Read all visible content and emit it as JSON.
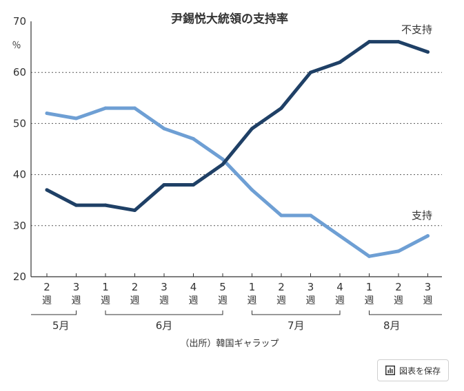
{
  "chart_data": {
    "type": "line",
    "title": "尹錫悦大統領の支持率",
    "ylabel": "％",
    "ylim": [
      20,
      70
    ],
    "yticks": [
      "20",
      "30",
      "40",
      "50",
      "60",
      "70"
    ],
    "categories": [
      "2",
      "3",
      "1",
      "2",
      "3",
      "4",
      "5",
      "1",
      "2",
      "3",
      "4",
      "1",
      "2",
      "3"
    ],
    "category_unit": "週",
    "months": [
      {
        "label": "5月",
        "from": 0,
        "to": 1
      },
      {
        "label": "6月",
        "from": 2,
        "to": 6
      },
      {
        "label": "7月",
        "from": 7,
        "to": 10
      },
      {
        "label": "8月",
        "from": 11,
        "to": 13
      }
    ],
    "series": [
      {
        "name": "不支持",
        "color": "#1f4066",
        "values": [
          37,
          34,
          34,
          33,
          38,
          38,
          42,
          49,
          53,
          60,
          62,
          66,
          66,
          64
        ]
      },
      {
        "name": "支持",
        "color": "#6e9fd4",
        "values": [
          52,
          51,
          53,
          53,
          49,
          47,
          43,
          37,
          32,
          32,
          28,
          24,
          25,
          28
        ]
      }
    ],
    "grid": "dotted horizontal",
    "source": "（出所）韓国ギャラップ"
  },
  "ui": {
    "save_button_label": "図表を保存",
    "save_icon": "bar-chart-icon"
  }
}
